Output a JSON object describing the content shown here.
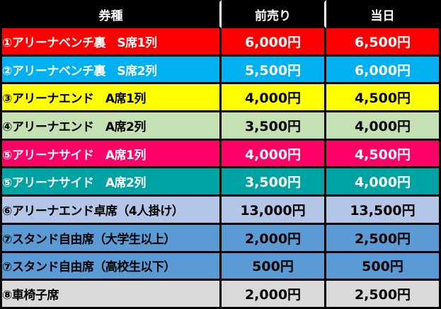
{
  "header": {
    "ticket_type": "券種",
    "advance": "前売り",
    "same_day": "当日"
  },
  "rows": [
    {
      "name": "①アリーナベンチ裏　S席1列",
      "advance": "6,000円",
      "same_day": "6,500円",
      "bg": "#ff0000",
      "fg": "#ffffff"
    },
    {
      "name": "②アリーナベンチ裏　S席2列",
      "advance": "5,500円",
      "same_day": "6,000円",
      "bg": "#00b0f0",
      "fg": "#ffffff"
    },
    {
      "name": "③アリーナエンド　A席1列",
      "advance": "4,000円",
      "same_day": "4,500円",
      "bg": "#ffff00",
      "fg": "#000000"
    },
    {
      "name": "④アリーナエンド　A席2列",
      "advance": "3,500円",
      "same_day": "4,000円",
      "bg": "#c5e0b3",
      "fg": "#000000"
    },
    {
      "name": "⑤アリーナサイド　A席1列",
      "advance": "4,000円",
      "same_day": "4,500円",
      "bg": "#ff0066",
      "fg": "#ffffff"
    },
    {
      "name": "⑤アリーナサイド　A席2列",
      "advance": "3,500円",
      "same_day": "4,000円",
      "bg": "#00a3a3",
      "fg": "#ffffff"
    },
    {
      "name": "⑥アリーナエンド卓席（4人掛け）",
      "advance": "13,000円",
      "same_day": "13,500円",
      "bg": "#b4c6e7",
      "fg": "#000000"
    },
    {
      "name": "⑦スタンド自由席（大学生以上）",
      "advance": "2,000円",
      "same_day": "2,500円",
      "bg": "#5b9bd5",
      "fg": "#000000"
    },
    {
      "name": "⑦スタンド自由席（高校生以下）",
      "advance": "500円",
      "same_day": "500円",
      "bg": "#5b9bd5",
      "fg": "#000000"
    },
    {
      "name": "⑧車椅子席",
      "advance": "2,000円",
      "same_day": "2,500円",
      "bg": "#d9d9d9",
      "fg": "#000000"
    }
  ]
}
